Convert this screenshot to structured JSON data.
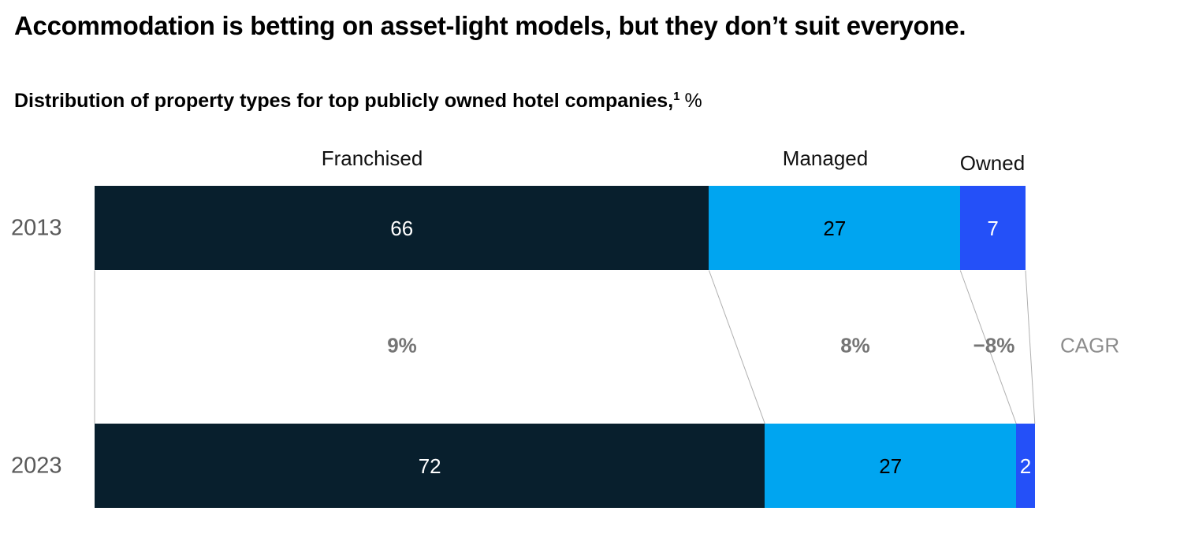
{
  "title": "Accommodation is betting on asset-light models, but they don’t suit everyone.",
  "subtitle": {
    "text": "Distribution of property types for top publicly owned hotel companies,",
    "footnote_marker": "1",
    "unit_suffix": "%"
  },
  "chart_data": {
    "type": "bar",
    "variant": "horizontal-stacked",
    "unit": "%",
    "xlim": [
      0,
      100
    ],
    "grid": false,
    "legend_position": "top",
    "categories": [
      "Franchised",
      "Managed",
      "Owned"
    ],
    "rows": [
      {
        "label": "2013",
        "values": [
          66,
          27,
          7
        ]
      },
      {
        "label": "2023",
        "values": [
          72,
          27,
          2
        ]
      }
    ],
    "cagr": {
      "label": "CAGR",
      "values": [
        "9%",
        "8%",
        "−8%"
      ]
    },
    "colors": {
      "Franchised": "#081F2D",
      "Managed": "#00A5F0",
      "Owned": "#2450F8"
    },
    "value_label_colors": [
      "#ffffff",
      "#000000",
      "#ffffff"
    ],
    "year_label_color": "#595959",
    "cagr_value_color": "#757575",
    "cagr_caption_color": "#8C8C8C",
    "connector_line_color": "#b0b0b0"
  }
}
